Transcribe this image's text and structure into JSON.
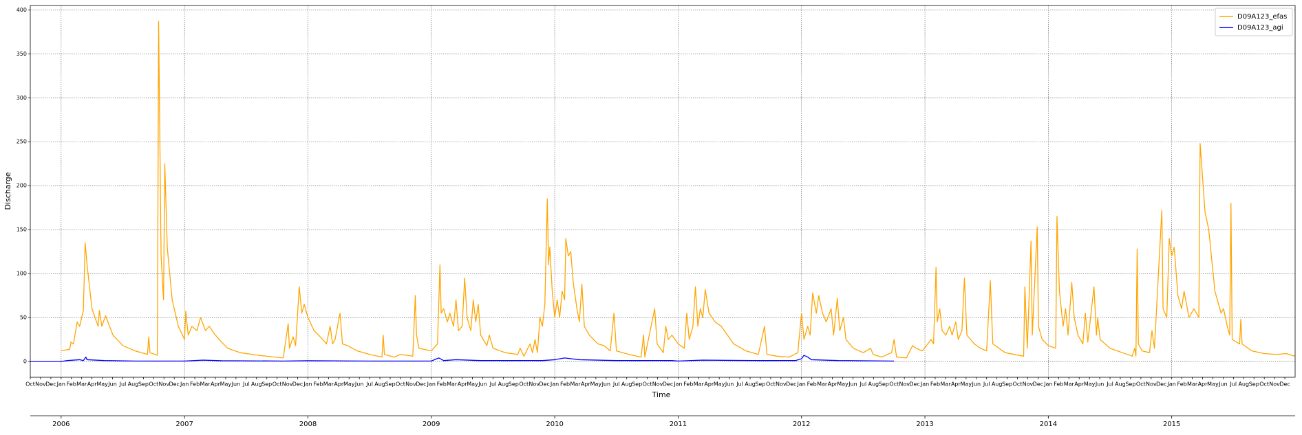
{
  "chart_data": {
    "type": "line",
    "xlabel": "Time",
    "ylabel": "Discharge",
    "xlim": [
      2005.75,
      2016.0
    ],
    "ylim": [
      -18,
      405
    ],
    "yticks": [
      0,
      50,
      100,
      150,
      200,
      250,
      300,
      350,
      400
    ],
    "x2ticks": [
      2006,
      2007,
      2008,
      2009,
      2010,
      2011,
      2012,
      2013,
      2014,
      2015
    ],
    "grid": true,
    "legend": "upper right",
    "xticks": [
      {
        "value": 2005.75,
        "label": "Oct"
      },
      {
        "value": 2005.8333,
        "label": "Nov"
      },
      {
        "value": 2005.9167,
        "label": "Dec"
      },
      {
        "value": 2006.0,
        "label": "Jan"
      },
      {
        "value": 2006.0833,
        "label": "Feb"
      },
      {
        "value": 2006.1667,
        "label": "Mar"
      },
      {
        "value": 2006.25,
        "label": "Apr"
      },
      {
        "value": 2006.3333,
        "label": "May"
      },
      {
        "value": 2006.4167,
        "label": "Jun"
      },
      {
        "value": 2006.5,
        "label": "Jul"
      },
      {
        "value": 2006.5833,
        "label": "Aug"
      },
      {
        "value": 2006.6667,
        "label": "Sep"
      },
      {
        "value": 2006.75,
        "label": "Oct"
      },
      {
        "value": 2006.8333,
        "label": "Nov"
      },
      {
        "value": 2006.9167,
        "label": "Dec"
      },
      {
        "value": 2007.0,
        "label": "Jan"
      },
      {
        "value": 2007.0833,
        "label": "Feb"
      },
      {
        "value": 2007.1667,
        "label": "Mar"
      },
      {
        "value": 2007.25,
        "label": "Apr"
      },
      {
        "value": 2007.3333,
        "label": "May"
      },
      {
        "value": 2007.4167,
        "label": "Jun"
      },
      {
        "value": 2007.5,
        "label": "Jul"
      },
      {
        "value": 2007.5833,
        "label": "Aug"
      },
      {
        "value": 2007.6667,
        "label": "Sep"
      },
      {
        "value": 2007.75,
        "label": "Oct"
      },
      {
        "value": 2007.8333,
        "label": "Nov"
      },
      {
        "value": 2007.9167,
        "label": "Dec"
      },
      {
        "value": 2008.0,
        "label": "Jan"
      },
      {
        "value": 2008.0833,
        "label": "Feb"
      },
      {
        "value": 2008.1667,
        "label": "Mar"
      },
      {
        "value": 2008.25,
        "label": "Apr"
      },
      {
        "value": 2008.3333,
        "label": "May"
      },
      {
        "value": 2008.4167,
        "label": "Jun"
      },
      {
        "value": 2008.5,
        "label": "Jul"
      },
      {
        "value": 2008.5833,
        "label": "Aug"
      },
      {
        "value": 2008.6667,
        "label": "Sep"
      },
      {
        "value": 2008.75,
        "label": "Oct"
      },
      {
        "value": 2008.8333,
        "label": "Nov"
      },
      {
        "value": 2008.9167,
        "label": "Dec"
      },
      {
        "value": 2009.0,
        "label": "Jan"
      },
      {
        "value": 2009.0833,
        "label": "Feb"
      },
      {
        "value": 2009.1667,
        "label": "Mar"
      },
      {
        "value": 2009.25,
        "label": "Apr"
      },
      {
        "value": 2009.3333,
        "label": "May"
      },
      {
        "value": 2009.4167,
        "label": "Jun"
      },
      {
        "value": 2009.5,
        "label": "Jul"
      },
      {
        "value": 2009.5833,
        "label": "Aug"
      },
      {
        "value": 2009.6667,
        "label": "Sep"
      },
      {
        "value": 2009.75,
        "label": "Oct"
      },
      {
        "value": 2009.8333,
        "label": "Nov"
      },
      {
        "value": 2009.9167,
        "label": "Dec"
      },
      {
        "value": 2010.0,
        "label": "Jan"
      },
      {
        "value": 2010.0833,
        "label": "Feb"
      },
      {
        "value": 2010.1667,
        "label": "Mar"
      },
      {
        "value": 2010.25,
        "label": "Apr"
      },
      {
        "value": 2010.3333,
        "label": "May"
      },
      {
        "value": 2010.4167,
        "label": "Jun"
      },
      {
        "value": 2010.5,
        "label": "Jul"
      },
      {
        "value": 2010.5833,
        "label": "Aug"
      },
      {
        "value": 2010.6667,
        "label": "Sep"
      },
      {
        "value": 2010.75,
        "label": "Oct"
      },
      {
        "value": 2010.8333,
        "label": "Nov"
      },
      {
        "value": 2010.9167,
        "label": "Dec"
      },
      {
        "value": 2011.0,
        "label": "Jan"
      },
      {
        "value": 2011.0833,
        "label": "Feb"
      },
      {
        "value": 2011.1667,
        "label": "Mar"
      },
      {
        "value": 2011.25,
        "label": "Apr"
      },
      {
        "value": 2011.3333,
        "label": "May"
      },
      {
        "value": 2011.4167,
        "label": "Jun"
      },
      {
        "value": 2011.5,
        "label": "Jul"
      },
      {
        "value": 2011.5833,
        "label": "Aug"
      },
      {
        "value": 2011.6667,
        "label": "Sep"
      },
      {
        "value": 2011.75,
        "label": "Oct"
      },
      {
        "value": 2011.8333,
        "label": "Nov"
      },
      {
        "value": 2011.9167,
        "label": "Dec"
      },
      {
        "value": 2012.0,
        "label": "Jan"
      },
      {
        "value": 2012.0833,
        "label": "Feb"
      },
      {
        "value": 2012.1667,
        "label": "Mar"
      },
      {
        "value": 2012.25,
        "label": "Apr"
      },
      {
        "value": 2012.3333,
        "label": "May"
      },
      {
        "value": 2012.4167,
        "label": "Jun"
      },
      {
        "value": 2012.5,
        "label": "Jul"
      },
      {
        "value": 2012.5833,
        "label": "Aug"
      },
      {
        "value": 2012.6667,
        "label": "Sep"
      },
      {
        "value": 2012.75,
        "label": "Oct"
      },
      {
        "value": 2012.8333,
        "label": "Nov"
      },
      {
        "value": 2012.9167,
        "label": "Dec"
      },
      {
        "value": 2013.0,
        "label": "Jan"
      },
      {
        "value": 2013.0833,
        "label": "Feb"
      },
      {
        "value": 2013.1667,
        "label": "Mar"
      },
      {
        "value": 2013.25,
        "label": "Apr"
      },
      {
        "value": 2013.3333,
        "label": "May"
      },
      {
        "value": 2013.4167,
        "label": "Jun"
      },
      {
        "value": 2013.5,
        "label": "Jul"
      },
      {
        "value": 2013.5833,
        "label": "Aug"
      },
      {
        "value": 2013.6667,
        "label": "Sep"
      },
      {
        "value": 2013.75,
        "label": "Oct"
      },
      {
        "value": 2013.8333,
        "label": "Nov"
      },
      {
        "value": 2013.9167,
        "label": "Dec"
      },
      {
        "value": 2014.0,
        "label": "Jan"
      },
      {
        "value": 2014.0833,
        "label": "Feb"
      },
      {
        "value": 2014.1667,
        "label": "Mar"
      },
      {
        "value": 2014.25,
        "label": "Apr"
      },
      {
        "value": 2014.3333,
        "label": "May"
      },
      {
        "value": 2014.4167,
        "label": "Jun"
      },
      {
        "value": 2014.5,
        "label": "Jul"
      },
      {
        "value": 2014.5833,
        "label": "Aug"
      },
      {
        "value": 2014.6667,
        "label": "Sep"
      },
      {
        "value": 2014.75,
        "label": "Oct"
      },
      {
        "value": 2014.8333,
        "label": "Nov"
      },
      {
        "value": 2014.9167,
        "label": "Dec"
      },
      {
        "value": 2015.0,
        "label": "Jan"
      },
      {
        "value": 2015.0833,
        "label": "Feb"
      },
      {
        "value": 2015.1667,
        "label": "Mar"
      },
      {
        "value": 2015.25,
        "label": "Apr"
      },
      {
        "value": 2015.3333,
        "label": "May"
      },
      {
        "value": 2015.4167,
        "label": "Jun"
      },
      {
        "value": 2015.5,
        "label": "Jul"
      },
      {
        "value": 2015.5833,
        "label": "Aug"
      },
      {
        "value": 2015.6667,
        "label": "Sep"
      },
      {
        "value": 2015.75,
        "label": "Oct"
      },
      {
        "value": 2015.8333,
        "label": "Nov"
      },
      {
        "value": 2015.9167,
        "label": "Dec"
      }
    ],
    "series": [
      {
        "name": "D09A123_efas",
        "color": "#ffa500",
        "x": [
          2006.0,
          2006.07,
          2006.08,
          2006.1,
          2006.13,
          2006.15,
          2006.18,
          2006.195,
          2006.21,
          2006.25,
          2006.3,
          2006.31,
          2006.33,
          2006.36,
          2006.42,
          2006.5,
          2006.6,
          2006.7,
          2006.71,
          2006.72,
          2006.78,
          2006.79,
          2006.81,
          2006.83,
          2006.84,
          2006.86,
          2006.9,
          2006.95,
          2007.0,
          2007.01,
          2007.03,
          2007.06,
          2007.1,
          2007.13,
          2007.17,
          2007.2,
          2007.25,
          2007.3,
          2007.35,
          2007.45,
          2007.6,
          2007.8,
          2007.84,
          2007.85,
          2007.88,
          2007.9,
          2007.93,
          2007.95,
          2007.97,
          2008.0,
          2008.05,
          2008.1,
          2008.15,
          2008.18,
          2008.2,
          2008.22,
          2008.26,
          2008.28,
          2008.32,
          2008.4,
          2008.5,
          2008.6,
          2008.61,
          2008.62,
          2008.7,
          2008.75,
          2008.85,
          2008.87,
          2008.88,
          2008.9,
          2009.0,
          2009.05,
          2009.07,
          2009.08,
          2009.1,
          2009.13,
          2009.15,
          2009.18,
          2009.2,
          2009.22,
          2009.25,
          2009.27,
          2009.29,
          2009.32,
          2009.34,
          2009.36,
          2009.38,
          2009.4,
          2009.45,
          2009.47,
          2009.5,
          2009.6,
          2009.7,
          2009.72,
          2009.75,
          2009.8,
          2009.82,
          2009.84,
          2009.86,
          2009.88,
          2009.9,
          2009.92,
          2009.94,
          2009.95,
          2009.96,
          2009.98,
          2010.0,
          2010.02,
          2010.04,
          2010.06,
          2010.08,
          2010.09,
          2010.11,
          2010.13,
          2010.15,
          2010.18,
          2010.2,
          2010.22,
          2010.24,
          2010.28,
          2010.35,
          2010.4,
          2010.45,
          2010.48,
          2010.5,
          2010.6,
          2010.7,
          2010.72,
          2010.73,
          2010.81,
          2010.83,
          2010.88,
          2010.9,
          2010.92,
          2010.95,
          2011.0,
          2011.05,
          2011.07,
          2011.09,
          2011.12,
          2011.14,
          2011.16,
          2011.18,
          2011.2,
          2011.22,
          2011.25,
          2011.3,
          2011.35,
          2011.4,
          2011.45,
          2011.55,
          2011.65,
          2011.7,
          2011.72,
          2011.8,
          2011.9,
          2011.97,
          2012.0,
          2012.02,
          2012.05,
          2012.07,
          2012.09,
          2012.12,
          2012.14,
          2012.17,
          2012.2,
          2012.24,
          2012.26,
          2012.29,
          2012.31,
          2012.34,
          2012.36,
          2012.42,
          2012.5,
          2012.56,
          2012.58,
          2012.65,
          2012.73,
          2012.75,
          2012.77,
          2012.85,
          2012.9,
          2012.93,
          2012.98,
          2013.05,
          2013.07,
          2013.09,
          2013.1,
          2013.12,
          2013.14,
          2013.17,
          2013.2,
          2013.22,
          2013.25,
          2013.27,
          2013.3,
          2013.32,
          2013.34,
          2013.4,
          2013.45,
          2013.5,
          2013.53,
          2013.55,
          2013.65,
          2013.8,
          2013.81,
          2013.83,
          2013.86,
          2013.87,
          2013.91,
          2013.92,
          2013.95,
          2014.0,
          2014.06,
          2014.07,
          2014.09,
          2014.12,
          2014.14,
          2014.16,
          2014.19,
          2014.21,
          2014.24,
          2014.28,
          2014.3,
          2014.32,
          2014.37,
          2014.39,
          2014.4,
          2014.42,
          2014.5,
          2014.6,
          2014.68,
          2014.7,
          2014.71,
          2014.72,
          2014.73,
          2014.76,
          2014.82,
          2014.84,
          2014.86,
          2014.92,
          2014.93,
          2014.96,
          2014.98,
          2015.0,
          2015.02,
          2015.05,
          2015.08,
          2015.1,
          2015.14,
          2015.18,
          2015.22,
          2015.23,
          2015.27,
          2015.3,
          2015.35,
          2015.4,
          2015.42,
          2015.45,
          2015.47,
          2015.48,
          2015.49,
          2015.55,
          2015.56,
          2015.57,
          2015.65,
          2015.75,
          2015.85,
          2015.93,
          2015.97,
          2016.0
        ],
        "values": [
          12,
          14,
          22,
          20,
          45,
          40,
          58,
          135,
          110,
          60,
          40,
          58,
          40,
          52,
          30,
          18,
          12,
          8,
          28,
          10,
          7,
          387,
          120,
          70,
          225,
          130,
          70,
          40,
          25,
          57,
          30,
          40,
          35,
          50,
          35,
          40,
          30,
          22,
          15,
          10,
          7,
          4,
          43,
          15,
          28,
          18,
          85,
          55,
          65,
          50,
          35,
          28,
          20,
          40,
          20,
          25,
          55,
          20,
          18,
          12,
          8,
          5,
          30,
          8,
          5,
          8,
          6,
          75,
          30,
          15,
          12,
          20,
          110,
          55,
          60,
          45,
          55,
          40,
          70,
          35,
          40,
          95,
          50,
          35,
          70,
          45,
          65,
          30,
          18,
          30,
          15,
          10,
          8,
          15,
          6,
          20,
          10,
          25,
          10,
          50,
          40,
          65,
          185,
          110,
          130,
          80,
          50,
          70,
          50,
          80,
          70,
          140,
          120,
          125,
          90,
          60,
          45,
          88,
          40,
          30,
          20,
          18,
          12,
          55,
          12,
          8,
          5,
          30,
          5,
          60,
          20,
          10,
          40,
          25,
          30,
          20,
          15,
          55,
          25,
          40,
          85,
          40,
          60,
          50,
          82,
          55,
          45,
          40,
          30,
          20,
          12,
          8,
          40,
          8,
          6,
          5,
          10,
          55,
          25,
          40,
          30,
          78,
          55,
          75,
          55,
          45,
          60,
          30,
          72,
          35,
          50,
          25,
          15,
          10,
          15,
          8,
          5,
          10,
          25,
          5,
          4,
          18,
          15,
          12,
          25,
          20,
          107,
          45,
          60,
          35,
          30,
          40,
          30,
          45,
          25,
          35,
          95,
          30,
          20,
          15,
          12,
          92,
          20,
          10,
          6,
          85,
          15,
          137,
          30,
          153,
          40,
          25,
          18,
          15,
          165,
          80,
          40,
          60,
          30,
          90,
          50,
          30,
          20,
          55,
          22,
          85,
          30,
          50,
          25,
          15,
          10,
          6,
          15,
          6,
          128,
          20,
          12,
          10,
          35,
          15,
          172,
          60,
          50,
          140,
          120,
          130,
          75,
          60,
          80,
          50,
          60,
          50,
          248,
          170,
          150,
          80,
          55,
          60,
          40,
          30,
          180,
          25,
          20,
          48,
          20,
          12,
          9,
          8,
          9,
          7,
          6
        ]
      },
      {
        "name": "D09A123_agi",
        "color": "#0000ff",
        "x": [
          2005.75,
          2006.0,
          2006.05,
          2006.15,
          2006.18,
          2006.2,
          2006.21,
          2006.35,
          2006.6,
          2007.0,
          2007.15,
          2007.3,
          2007.8,
          2008.0,
          2008.5,
          2009.0,
          2009.06,
          2009.1,
          2009.2,
          2009.4,
          2009.9,
          2010.0,
          2010.08,
          2010.2,
          2010.5,
          2010.95,
          2011.0,
          2011.2,
          2011.6,
          2011.95,
          2012.0,
          2012.02,
          2012.05,
          2012.08,
          2012.3,
          2012.75
        ],
        "values": [
          0,
          0,
          1,
          2,
          1,
          5,
          2,
          1,
          0.5,
          0.5,
          1.5,
          0.8,
          0.5,
          0.8,
          0.5,
          0.5,
          4,
          1,
          2,
          1,
          1,
          2,
          4,
          2,
          1,
          1,
          0.5,
          1.5,
          1,
          1,
          3,
          7,
          5,
          2,
          1,
          0.5
        ]
      }
    ]
  }
}
